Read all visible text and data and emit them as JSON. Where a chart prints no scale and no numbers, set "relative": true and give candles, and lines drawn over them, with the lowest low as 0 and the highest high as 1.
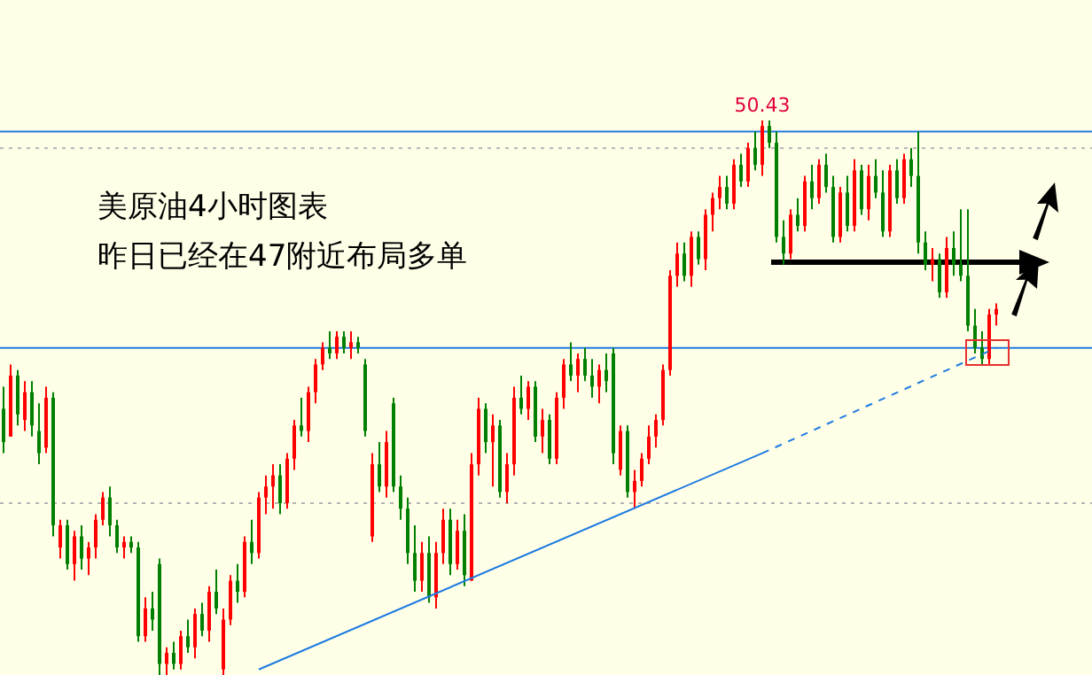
{
  "chart_data": {
    "type": "candlestick",
    "relative": true,
    "categories": [
      null,
      null,
      null,
      null,
      null,
      null,
      null,
      null,
      null,
      null,
      null,
      null,
      null,
      null,
      null,
      null,
      null,
      null,
      null,
      null,
      null,
      null,
      null,
      null,
      null,
      null,
      null,
      null,
      null,
      null,
      null,
      null,
      null,
      null,
      null,
      null,
      null,
      null,
      null,
      null,
      null,
      null,
      null,
      null,
      null,
      null,
      null,
      null,
      null,
      null,
      null,
      null,
      null,
      null,
      null,
      null,
      null,
      null,
      null,
      null,
      null,
      null,
      null,
      null,
      null,
      null,
      null,
      null,
      null,
      null,
      null,
      null,
      null,
      null,
      null,
      null,
      null,
      null,
      null,
      null,
      null,
      null,
      null,
      null,
      null,
      null,
      null,
      null,
      null,
      null,
      null,
      null,
      null,
      null,
      null,
      null,
      null,
      null,
      null,
      null,
      null,
      null,
      null,
      null,
      null,
      null,
      null,
      null,
      null,
      null,
      null,
      null,
      null,
      null,
      null,
      null,
      null,
      null,
      null,
      null,
      null,
      null,
      null,
      null,
      null,
      null,
      null,
      null,
      null,
      null,
      null,
      null,
      null,
      null,
      null,
      null,
      null,
      null,
      null,
      null,
      null
    ],
    "colors": [
      "#008000",
      "#ff0000",
      "#008000",
      "#ff0000",
      "#008000",
      "#008000",
      "#ff0000",
      "#008000",
      "#ff0000",
      "#008000",
      "#ff0000",
      "#008000",
      "#ff0000",
      "#ff0000",
      "#ff0000",
      "#008000",
      "#008000",
      "#ff0000",
      "#008000",
      "#008000",
      "#ff0000",
      "#008000",
      "#008000",
      "#ff0000",
      "#008000",
      "#ff0000",
      "#008000",
      "#ff0000",
      "#008000",
      "#ff0000",
      "#008000",
      "#ff0000",
      "#ff0000",
      "#008000",
      "#ff0000",
      "#008000",
      "#ff0000",
      "#ff0000",
      "#ff0000",
      "#008000",
      "#ff0000",
      "#ff0000",
      "#008000",
      "#ff0000",
      "#ff0000",
      "#ff0000",
      "#008000",
      "#ff0000",
      "#008000",
      "#ff0000",
      "#008000",
      "#008000",
      "#ff0000",
      "#008000",
      "#ff0000",
      "#008000",
      "#008000",
      "#008000",
      "#008000",
      "#ff0000",
      "#008000",
      "#ff0000",
      "#ff0000",
      "#008000",
      "#ff0000",
      "#008000",
      "#ff0000",
      "#ff0000",
      "#008000",
      "#ff0000",
      "#008000",
      "#ff0000",
      "#ff0000",
      "#008000",
      "#ff0000",
      "#008000",
      "#ff0000",
      "#008000",
      "#ff0000",
      "#ff0000",
      "#008000",
      "#ff0000",
      "#008000",
      "#008000",
      "#ff0000",
      "#008000",
      "#008000",
      "#ff0000",
      "#008000",
      "#ff0000",
      "#ff0000",
      "#ff0000",
      "#ff0000",
      "#ff0000",
      "#ff0000",
      "#ff0000",
      "#008000",
      "#ff0000",
      "#008000",
      "#ff0000",
      "#ff0000",
      "#ff0000",
      "#008000",
      "#ff0000",
      "#008000",
      "#ff0000",
      "#008000",
      "#ff0000",
      "#008000",
      "#008000",
      "#008000",
      "#ff0000",
      "#008000",
      "#ff0000",
      "#008000",
      "#ff0000",
      "#008000",
      "#008000",
      "#ff0000",
      "#008000",
      "#ff0000",
      "#008000",
      "#ff0000",
      "#008000",
      "#008000",
      "#ff0000",
      "#008000",
      "#ff0000",
      "#008000",
      "#008000",
      "#008000",
      "#ff0000",
      "#008000",
      "#ff0000",
      "#008000",
      "#008000",
      "#008000",
      "#008000",
      "#008000",
      "#ff0000",
      "#ff0000"
    ],
    "ohlc": [
      [
        0.48,
        0.52,
        0.4,
        0.42
      ],
      [
        0.43,
        0.56,
        0.43,
        0.54
      ],
      [
        0.54,
        0.55,
        0.45,
        0.47
      ],
      [
        0.46,
        0.53,
        0.44,
        0.51
      ],
      [
        0.51,
        0.53,
        0.43,
        0.45
      ],
      [
        0.44,
        0.49,
        0.38,
        0.4
      ],
      [
        0.41,
        0.52,
        0.4,
        0.5
      ],
      [
        0.5,
        0.51,
        0.25,
        0.27
      ],
      [
        0.23,
        0.28,
        0.21,
        0.27
      ],
      [
        0.27,
        0.28,
        0.19,
        0.2
      ],
      [
        0.2,
        0.26,
        0.17,
        0.25
      ],
      [
        0.25,
        0.27,
        0.19,
        0.21
      ],
      [
        0.21,
        0.24,
        0.18,
        0.23
      ],
      [
        0.23,
        0.29,
        0.21,
        0.28
      ],
      [
        0.28,
        0.33,
        0.27,
        0.32
      ],
      [
        0.32,
        0.34,
        0.25,
        0.27
      ],
      [
        0.27,
        0.28,
        0.22,
        0.23
      ],
      [
        0.23,
        0.25,
        0.21,
        0.24
      ],
      [
        0.24,
        0.25,
        0.22,
        0.23
      ],
      [
        0.23,
        0.24,
        0.06,
        0.07
      ],
      [
        0.07,
        0.14,
        0.06,
        0.12
      ],
      [
        0.12,
        0.15,
        0.08,
        0.1
      ],
      [
        0.2,
        0.21,
        0.0,
        0.02
      ],
      [
        0.02,
        0.05,
        0.0,
        0.04
      ],
      [
        0.04,
        0.06,
        0.01,
        0.02
      ],
      [
        0.02,
        0.08,
        0.01,
        0.07
      ],
      [
        0.07,
        0.1,
        0.04,
        0.05
      ],
      [
        0.05,
        0.12,
        0.03,
        0.11
      ],
      [
        0.11,
        0.13,
        0.07,
        0.08
      ],
      [
        0.08,
        0.16,
        0.06,
        0.15
      ],
      [
        0.15,
        0.19,
        0.11,
        0.12
      ],
      [
        0.01,
        0.12,
        0.0,
        0.1
      ],
      [
        0.1,
        0.18,
        0.09,
        0.17
      ],
      [
        0.17,
        0.2,
        0.13,
        0.15
      ],
      [
        0.15,
        0.25,
        0.14,
        0.24
      ],
      [
        0.24,
        0.28,
        0.2,
        0.22
      ],
      [
        0.22,
        0.33,
        0.21,
        0.32
      ],
      [
        0.32,
        0.36,
        0.29,
        0.34
      ],
      [
        0.34,
        0.38,
        0.3,
        0.36
      ],
      [
        0.36,
        0.38,
        0.29,
        0.31
      ],
      [
        0.31,
        0.4,
        0.3,
        0.39
      ],
      [
        0.39,
        0.46,
        0.37,
        0.45
      ],
      [
        0.45,
        0.5,
        0.43,
        0.44
      ],
      [
        0.44,
        0.52,
        0.42,
        0.51
      ],
      [
        0.51,
        0.57,
        0.49,
        0.56
      ],
      [
        0.56,
        0.6,
        0.55,
        0.59
      ],
      [
        0.59,
        0.62,
        0.57,
        0.58
      ],
      [
        0.58,
        0.62,
        0.57,
        0.61
      ],
      [
        0.61,
        0.62,
        0.58,
        0.59
      ],
      [
        0.59,
        0.62,
        0.57,
        0.6
      ],
      [
        0.6,
        0.61,
        0.58,
        0.59
      ],
      [
        0.56,
        0.57,
        0.43,
        0.44
      ],
      [
        0.25,
        0.4,
        0.24,
        0.38
      ],
      [
        0.38,
        0.42,
        0.33,
        0.34
      ],
      [
        0.34,
        0.44,
        0.32,
        0.42
      ],
      [
        0.49,
        0.5,
        0.33,
        0.34
      ],
      [
        0.34,
        0.36,
        0.28,
        0.3
      ],
      [
        0.3,
        0.32,
        0.2,
        0.22
      ],
      [
        0.22,
        0.27,
        0.15,
        0.17
      ],
      [
        0.17,
        0.24,
        0.15,
        0.22
      ],
      [
        0.22,
        0.25,
        0.13,
        0.14
      ],
      [
        0.14,
        0.24,
        0.12,
        0.22
      ],
      [
        0.22,
        0.3,
        0.2,
        0.28
      ],
      [
        0.28,
        0.3,
        0.18,
        0.2
      ],
      [
        0.2,
        0.28,
        0.19,
        0.26
      ],
      [
        0.26,
        0.29,
        0.16,
        0.18
      ],
      [
        0.17,
        0.4,
        0.17,
        0.38
      ],
      [
        0.38,
        0.5,
        0.36,
        0.48
      ],
      [
        0.48,
        0.49,
        0.4,
        0.42
      ],
      [
        0.42,
        0.47,
        0.34,
        0.45
      ],
      [
        0.45,
        0.46,
        0.32,
        0.33
      ],
      [
        0.33,
        0.4,
        0.31,
        0.38
      ],
      [
        0.38,
        0.52,
        0.36,
        0.5
      ],
      [
        0.5,
        0.54,
        0.47,
        0.48
      ],
      [
        0.48,
        0.53,
        0.46,
        0.52
      ],
      [
        0.52,
        0.53,
        0.42,
        0.43
      ],
      [
        0.43,
        0.48,
        0.4,
        0.46
      ],
      [
        0.46,
        0.47,
        0.38,
        0.39
      ],
      [
        0.39,
        0.51,
        0.38,
        0.5
      ],
      [
        0.5,
        0.57,
        0.48,
        0.56
      ],
      [
        0.56,
        0.6,
        0.53,
        0.54
      ],
      [
        0.54,
        0.58,
        0.51,
        0.57
      ],
      [
        0.57,
        0.59,
        0.53,
        0.54
      ],
      [
        0.54,
        0.57,
        0.5,
        0.52
      ],
      [
        0.52,
        0.56,
        0.49,
        0.55
      ],
      [
        0.55,
        0.58,
        0.51,
        0.53
      ],
      [
        0.58,
        0.59,
        0.38,
        0.4
      ],
      [
        0.37,
        0.45,
        0.36,
        0.44
      ],
      [
        0.44,
        0.45,
        0.32,
        0.33
      ],
      [
        0.33,
        0.37,
        0.3,
        0.35
      ],
      [
        0.35,
        0.4,
        0.34,
        0.39
      ],
      [
        0.39,
        0.45,
        0.38,
        0.43
      ],
      [
        0.43,
        0.47,
        0.41,
        0.46
      ],
      [
        0.46,
        0.56,
        0.45,
        0.55
      ],
      [
        0.55,
        0.73,
        0.54,
        0.72
      ],
      [
        0.72,
        0.78,
        0.7,
        0.76
      ],
      [
        0.76,
        0.78,
        0.71,
        0.72
      ],
      [
        0.72,
        0.8,
        0.7,
        0.79
      ],
      [
        0.79,
        0.8,
        0.74,
        0.75
      ],
      [
        0.75,
        0.84,
        0.73,
        0.83
      ],
      [
        0.83,
        0.87,
        0.8,
        0.86
      ],
      [
        0.86,
        0.9,
        0.84,
        0.88
      ],
      [
        0.88,
        0.9,
        0.84,
        0.85
      ],
      [
        0.85,
        0.93,
        0.84,
        0.92
      ],
      [
        0.92,
        0.94,
        0.88,
        0.89
      ],
      [
        0.89,
        0.96,
        0.88,
        0.95
      ],
      [
        0.95,
        0.98,
        0.91,
        0.92
      ],
      [
        0.92,
        1.0,
        0.9,
        0.99
      ],
      [
        0.99,
        1.0,
        0.95,
        0.96
      ],
      [
        0.96,
        0.98,
        0.78,
        0.79
      ],
      [
        0.79,
        0.82,
        0.74,
        0.76
      ],
      [
        0.76,
        0.84,
        0.75,
        0.83
      ],
      [
        0.83,
        0.86,
        0.8,
        0.81
      ],
      [
        0.81,
        0.9,
        0.8,
        0.89
      ],
      [
        0.89,
        0.92,
        0.84,
        0.86
      ],
      [
        0.86,
        0.93,
        0.85,
        0.92
      ],
      [
        0.92,
        0.94,
        0.87,
        0.88
      ],
      [
        0.88,
        0.9,
        0.78,
        0.79
      ],
      [
        0.79,
        0.88,
        0.78,
        0.87
      ],
      [
        0.87,
        0.9,
        0.8,
        0.81
      ],
      [
        0.81,
        0.93,
        0.8,
        0.91
      ],
      [
        0.91,
        0.92,
        0.83,
        0.84
      ],
      [
        0.84,
        0.92,
        0.82,
        0.9
      ],
      [
        0.9,
        0.93,
        0.86,
        0.87
      ],
      [
        0.87,
        0.91,
        0.79,
        0.8
      ],
      [
        0.8,
        0.92,
        0.79,
        0.91
      ],
      [
        0.91,
        0.93,
        0.85,
        0.86
      ],
      [
        0.86,
        0.94,
        0.85,
        0.93
      ],
      [
        0.93,
        0.95,
        0.88,
        0.9
      ],
      [
        0.9,
        0.98,
        0.76,
        0.78
      ],
      [
        0.78,
        0.8,
        0.73,
        0.74
      ],
      [
        0.74,
        0.77,
        0.71,
        0.75
      ],
      [
        0.75,
        0.76,
        0.68,
        0.69
      ],
      [
        0.69,
        0.79,
        0.68,
        0.77
      ],
      [
        0.77,
        0.8,
        0.72,
        0.74
      ],
      [
        0.74,
        0.84,
        0.71,
        0.72
      ],
      [
        0.72,
        0.84,
        0.62,
        0.63
      ],
      [
        0.63,
        0.66,
        0.58,
        0.59
      ],
      [
        0.59,
        0.62,
        0.56,
        0.57
      ],
      [
        0.57,
        0.66,
        0.56,
        0.65
      ],
      [
        0.65,
        0.67,
        0.63,
        0.66
      ]
    ],
    "series": [
      {
        "type": "line",
        "color": "#1e7be0",
        "line_style": "solid",
        "values": [
          null,
          null,
          null,
          null,
          null,
          null,
          null,
          null,
          null,
          null,
          null,
          null,
          null,
          null,
          null,
          null,
          null,
          null,
          null,
          null,
          null,
          null,
          null,
          null,
          null,
          null,
          null,
          null,
          null,
          null,
          null,
          null,
          null,
          null,
          null,
          null,
          0.01,
          null,
          null,
          null,
          null,
          null,
          null,
          null,
          null,
          null,
          null,
          null,
          null,
          null,
          null,
          null,
          null,
          null,
          null,
          null,
          null,
          null,
          null,
          null,
          null,
          null,
          null,
          null,
          null,
          null,
          null,
          null,
          null,
          null,
          null,
          null,
          null,
          null,
          null,
          null,
          null,
          null,
          null,
          null,
          null,
          null,
          null,
          null,
          null,
          null,
          null,
          null,
          null,
          null,
          null,
          null,
          null,
          null,
          null,
          null,
          null,
          null,
          null,
          null,
          null,
          null,
          null,
          null,
          null,
          null,
          null,
          0.4,
          null,
          null,
          null,
          null,
          null,
          null,
          null,
          null,
          null,
          null,
          null,
          null,
          null,
          null,
          null,
          null,
          null,
          null,
          null,
          null,
          null,
          null,
          null,
          null,
          null,
          null,
          null,
          null,
          null,
          null,
          null,
          null,
          null
        ]
      },
      {
        "type": "line",
        "color": "#1e7be0",
        "line_style": "dashed",
        "values": [
          null,
          null,
          null,
          null,
          null,
          null,
          null,
          null,
          null,
          null,
          null,
          null,
          null,
          null,
          null,
          null,
          null,
          null,
          null,
          null,
          null,
          null,
          null,
          null,
          null,
          null,
          null,
          null,
          null,
          null,
          null,
          null,
          null,
          null,
          null,
          null,
          null,
          null,
          null,
          null,
          null,
          null,
          null,
          null,
          null,
          null,
          null,
          null,
          null,
          null,
          null,
          null,
          null,
          null,
          null,
          null,
          null,
          null,
          null,
          null,
          null,
          null,
          null,
          null,
          null,
          null,
          null,
          null,
          null,
          null,
          null,
          null,
          null,
          null,
          null,
          null,
          null,
          null,
          null,
          null,
          null,
          null,
          null,
          null,
          null,
          null,
          null,
          null,
          null,
          null,
          null,
          null,
          null,
          null,
          null,
          null,
          null,
          null,
          null,
          null,
          null,
          null,
          null,
          null,
          null,
          null,
          null,
          0.4,
          null,
          null,
          null,
          null,
          null,
          null,
          null,
          null,
          null,
          null,
          null,
          null,
          null,
          null,
          null,
          null,
          null,
          null,
          null,
          null,
          null,
          null,
          null,
          null,
          null,
          null,
          null,
          null,
          null,
          null,
          null,
          null,
          0.59
        ]
      }
    ],
    "ref_lines": [
      {
        "axis": "y",
        "value": 0.98,
        "color": "#1e7be0",
        "line_style": "solid"
      },
      {
        "axis": "y",
        "value": 0.59,
        "color": "#1e7be0",
        "line_style": "solid"
      },
      {
        "axis": "y",
        "value": 0.95,
        "color": "#b4b4b4",
        "line_style": "dotted"
      },
      {
        "axis": "y",
        "value": 0.31,
        "color": "#b4b4b4",
        "line_style": "dotted"
      }
    ],
    "annotations": [
      "50.43",
      "美原油4小时图表",
      "昨日已经在47附近布局多单"
    ]
  }
}
